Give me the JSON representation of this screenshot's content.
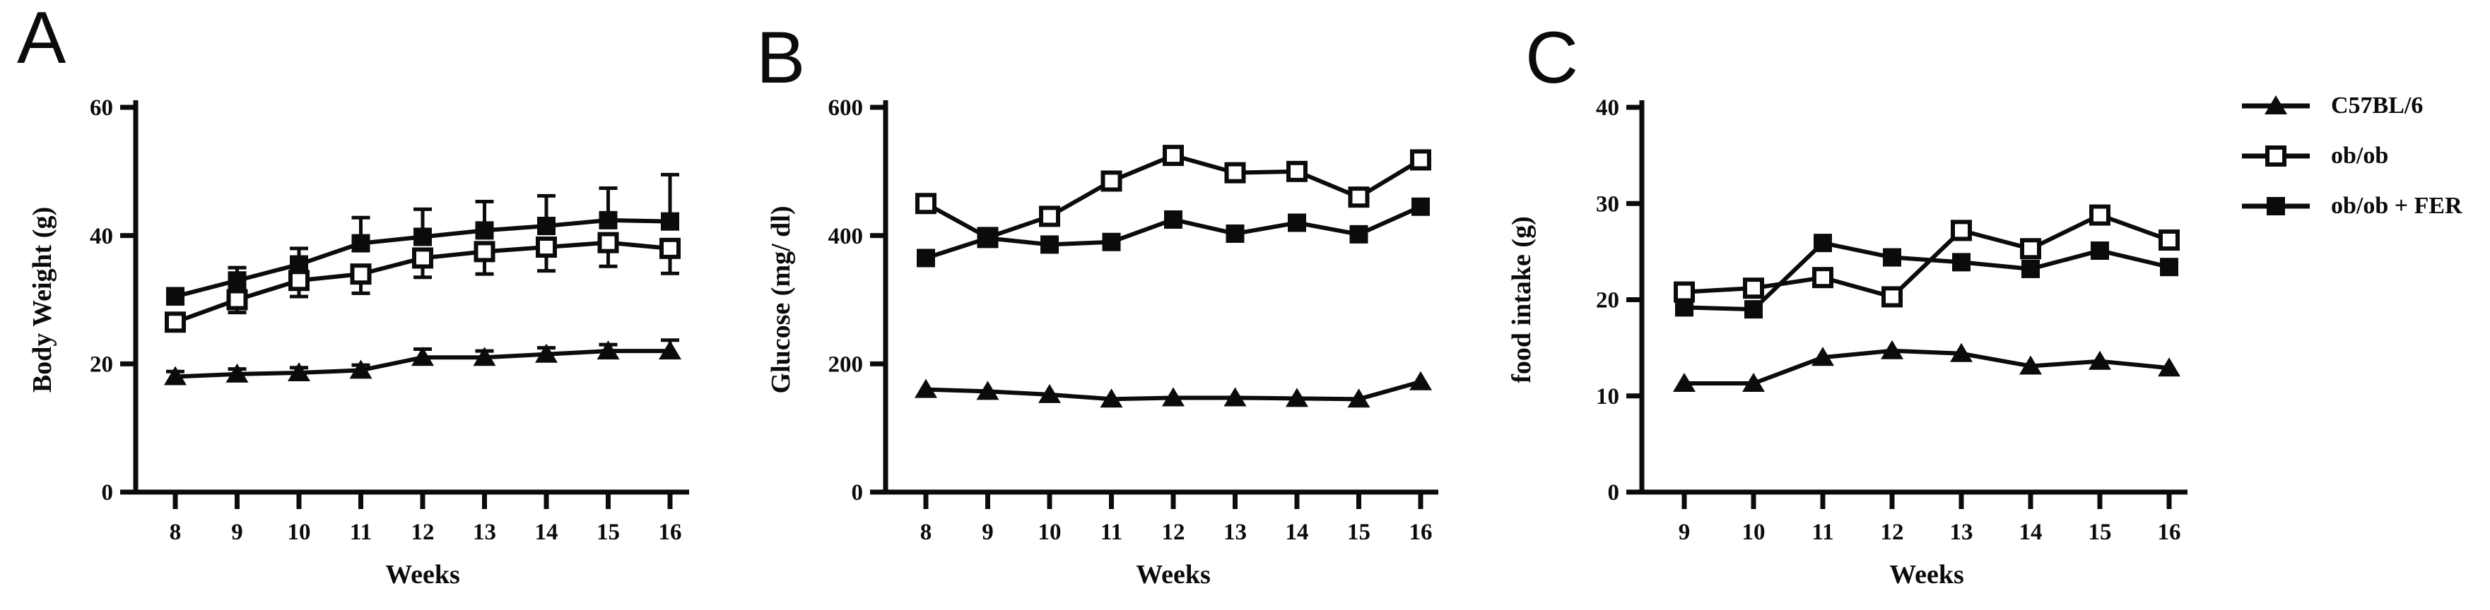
{
  "figure": {
    "background": "#ffffff",
    "ink": "#0b0b0b"
  },
  "legend": {
    "items": [
      {
        "label": "C57BL/6",
        "marker": "filled-triangle"
      },
      {
        "label": "ob/ob",
        "marker": "open-square"
      },
      {
        "label": "ob/ob + FER",
        "marker": "filled-square"
      }
    ]
  },
  "chart_data": [
    {
      "type": "line",
      "panel_letter": "A",
      "title": "",
      "xlabel": "Weeks",
      "ylabel": "Body Weight (g)",
      "ylim": [
        0,
        60
      ],
      "yticks": [
        0,
        20,
        40,
        60
      ],
      "x": [
        8,
        9,
        10,
        11,
        12,
        13,
        14,
        15,
        16
      ],
      "grid": false,
      "series": [
        {
          "name": "C57BL/6",
          "marker": "filled-triangle",
          "values": [
            18,
            18.4,
            18.6,
            19,
            21,
            21,
            21.5,
            22,
            22
          ],
          "errors": [
            0.8,
            0.8,
            0.8,
            0.8,
            1.3,
            1.0,
            1.0,
            1.0,
            1.7
          ],
          "error_dir": "up"
        },
        {
          "name": "ob/ob",
          "marker": "open-square",
          "values": [
            26.5,
            30,
            33,
            34,
            36.5,
            37.5,
            38.2,
            38.9,
            38
          ],
          "errors": [
            1.0,
            2.0,
            2.5,
            3.0,
            3.0,
            3.5,
            3.7,
            3.7,
            3.9
          ],
          "error_dir": "down"
        },
        {
          "name": "ob/ob + FER",
          "marker": "filled-square",
          "values": [
            30.5,
            33,
            35.5,
            38.8,
            39.8,
            40.8,
            41.5,
            42.4,
            42.2
          ],
          "errors": [
            1.2,
            2.0,
            2.5,
            4.0,
            4.3,
            4.5,
            4.7,
            5.0,
            7.3
          ],
          "error_dir": "up"
        }
      ]
    },
    {
      "type": "line",
      "panel_letter": "B",
      "title": "",
      "xlabel": "Weeks",
      "ylabel": "Glucose (mg/ dl)",
      "ylim": [
        0,
        600
      ],
      "yticks": [
        0,
        200,
        400,
        600
      ],
      "x": [
        8,
        9,
        10,
        11,
        12,
        13,
        14,
        15,
        16
      ],
      "grid": false,
      "series": [
        {
          "name": "C57BL/6",
          "marker": "filled-triangle",
          "values": [
            160,
            157,
            152,
            145,
            147,
            147,
            146,
            145,
            172
          ],
          "errors": null,
          "error_dir": "up"
        },
        {
          "name": "ob/ob",
          "marker": "open-square",
          "values": [
            450,
            397,
            430,
            485,
            525,
            498,
            500,
            460,
            518
          ],
          "errors": null,
          "error_dir": "down"
        },
        {
          "name": "ob/ob + FER",
          "marker": "filled-square",
          "values": [
            365,
            396,
            386,
            390,
            425,
            403,
            420,
            402,
            445
          ],
          "errors": null,
          "error_dir": "up"
        }
      ]
    },
    {
      "type": "line",
      "panel_letter": "C",
      "title": "",
      "xlabel": "Weeks",
      "ylabel": "food intake (g)",
      "ylim": [
        0,
        40
      ],
      "yticks": [
        0,
        10,
        20,
        30,
        40
      ],
      "x": [
        9,
        10,
        11,
        12,
        13,
        14,
        15,
        16
      ],
      "grid": false,
      "series": [
        {
          "name": "C57BL/6",
          "marker": "filled-triangle",
          "values": [
            11.3,
            11.3,
            14.0,
            14.7,
            14.4,
            13.1,
            13.6,
            12.9
          ],
          "errors": null,
          "error_dir": "up"
        },
        {
          "name": "ob/ob",
          "marker": "open-square",
          "values": [
            20.8,
            21.2,
            22.3,
            20.3,
            27.2,
            25.3,
            28.8,
            26.2
          ],
          "errors": null,
          "error_dir": "down"
        },
        {
          "name": "ob/ob + FER",
          "marker": "filled-square",
          "values": [
            19.2,
            19.0,
            25.9,
            24.4,
            23.9,
            23.2,
            25.1,
            23.4
          ],
          "errors": null,
          "error_dir": "up"
        }
      ]
    }
  ]
}
